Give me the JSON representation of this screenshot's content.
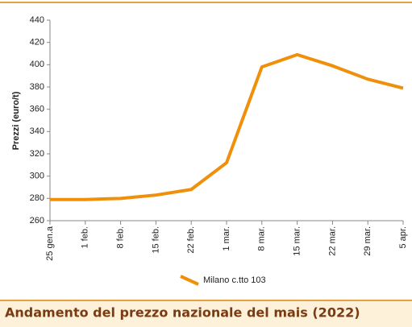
{
  "chart_data": {
    "type": "line",
    "title": "Andamento del prezzo nazionale del mais (2022)",
    "y_label": "Prezzi (euro/t)",
    "categories": [
      "25 gen.a",
      "1 feb.",
      "8 feb.",
      "15 feb.",
      "22 feb.",
      "1 mar.",
      "8 mar.",
      "15 mar.",
      "22 mar.",
      "29 mar.",
      "5 apr."
    ],
    "series": [
      {
        "name": "Milano  c.tto 103",
        "color": "#f0900a",
        "values": [
          279,
          279,
          280,
          283,
          288,
          312,
          398,
          409,
          399,
          387,
          379
        ]
      }
    ],
    "ylim": [
      260,
      440
    ],
    "yticks": [
      260,
      280,
      300,
      320,
      340,
      360,
      380,
      400,
      420,
      440
    ]
  }
}
